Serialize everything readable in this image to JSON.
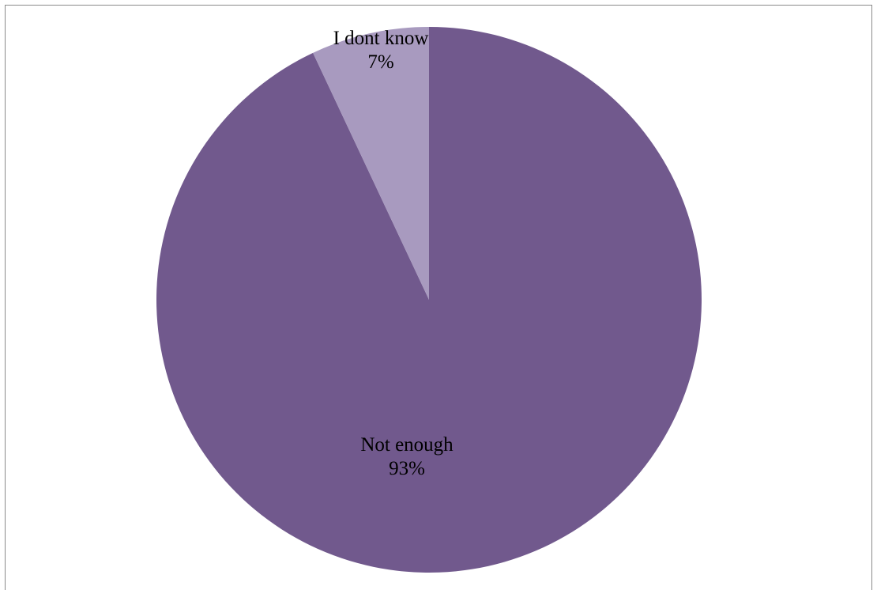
{
  "chart_data": {
    "type": "pie",
    "slices": [
      {
        "label": "Not enough",
        "value": 93,
        "percent_label": "93%",
        "color": "#71598D"
      },
      {
        "label": "I dont know",
        "value": 7,
        "percent_label": "7%",
        "color": "#A89ABF"
      }
    ],
    "start_angle_deg": 0,
    "direction": "clockwise",
    "legend": "none",
    "data_labels": "category and percentage, inside slices"
  }
}
